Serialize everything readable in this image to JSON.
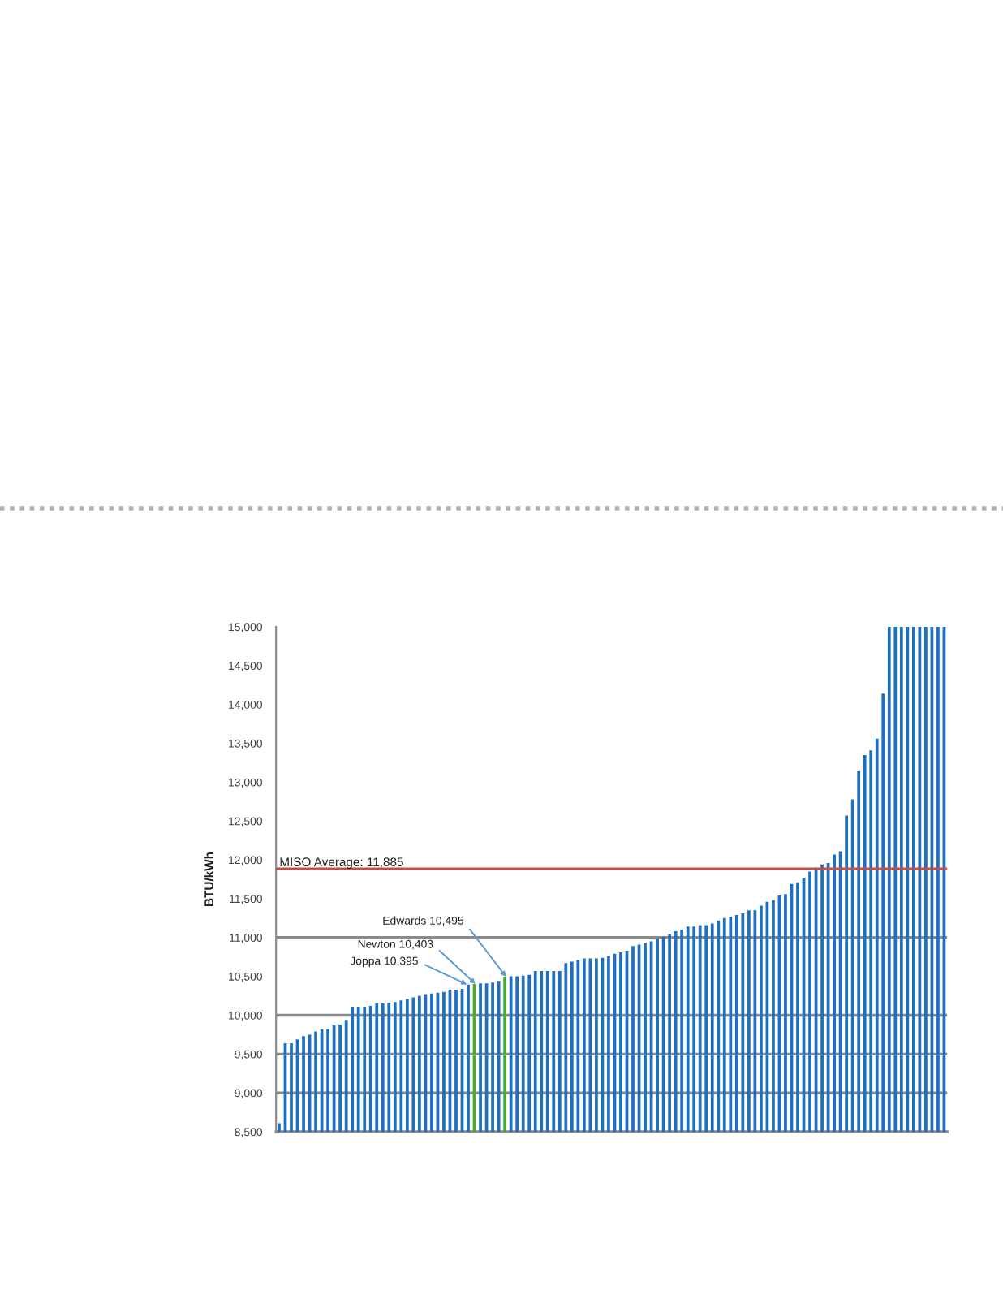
{
  "chart_data": {
    "type": "bar",
    "ylabel": "BTU/kWh",
    "categories": [
      null,
      null,
      null,
      null,
      null,
      null,
      null,
      null,
      null,
      null,
      null,
      null,
      null,
      null,
      null,
      null,
      null,
      null,
      null,
      null,
      null,
      null,
      null,
      null,
      null,
      null,
      null,
      null,
      null,
      null,
      null,
      null,
      null,
      null,
      null,
      null,
      null,
      null,
      null,
      null,
      null,
      null,
      null,
      null,
      null,
      null,
      null,
      null,
      null,
      null,
      null,
      null,
      null,
      null,
      null,
      null,
      null,
      null,
      null,
      null,
      null,
      null,
      null,
      null,
      null,
      null,
      null,
      null,
      null,
      null,
      null,
      null,
      null,
      null,
      null,
      null,
      null,
      null,
      null,
      null,
      null,
      null,
      null,
      null,
      null,
      null,
      null,
      null,
      null,
      null,
      null,
      null,
      null,
      null,
      null,
      null,
      null,
      null,
      null,
      null,
      null,
      null,
      null,
      null,
      null,
      null,
      null,
      null,
      null,
      null
    ],
    "values": [
      8610,
      9640,
      9640,
      9690,
      9730,
      9750,
      9790,
      9820,
      9820,
      9880,
      9880,
      9940,
      10110,
      10110,
      10110,
      10120,
      10150,
      10150,
      10160,
      10170,
      10190,
      10210,
      10230,
      10250,
      10270,
      10280,
      10290,
      10300,
      10330,
      10330,
      10340,
      10395,
      10403,
      10410,
      10410,
      10420,
      10440,
      10495,
      10500,
      10500,
      10510,
      10520,
      10570,
      10570,
      10570,
      10570,
      10570,
      10670,
      10690,
      10710,
      10730,
      10730,
      10730,
      10740,
      10760,
      10790,
      10810,
      10830,
      10890,
      10910,
      10930,
      10950,
      10990,
      11010,
      11040,
      11080,
      11100,
      11140,
      11140,
      11160,
      11160,
      11180,
      11220,
      11250,
      11270,
      11290,
      11310,
      11350,
      11350,
      11410,
      11460,
      11480,
      11540,
      11560,
      11690,
      11710,
      11770,
      11850,
      11900,
      11940,
      11960,
      12070,
      12110,
      12570,
      12780,
      13140,
      13350,
      13410,
      13560,
      14140,
      15000,
      15000,
      15000,
      15000,
      15000,
      15000,
      15000,
      15000,
      15000,
      15000
    ],
    "colors": [
      "#1f6fbf",
      "#1f6fbf",
      "#1f6fbf",
      "#1f6fbf",
      "#1f6fbf",
      "#1f6fbf",
      "#1f6fbf",
      "#1f6fbf",
      "#1f6fbf",
      "#1f6fbf",
      "#1f6fbf",
      "#1f6fbf",
      "#1f6fbf",
      "#1f6fbf",
      "#1f6fbf",
      "#1f6fbf",
      "#1f6fbf",
      "#1f6fbf",
      "#1f6fbf",
      "#1f6fbf",
      "#1f6fbf",
      "#1f6fbf",
      "#1f6fbf",
      "#1f6fbf",
      "#1f6fbf",
      "#1f6fbf",
      "#1f6fbf",
      "#1f6fbf",
      "#1f6fbf",
      "#1f6fbf",
      "#1f6fbf",
      "#1f6fbf",
      "#4ea72e",
      "#1f6fbf",
      "#1f6fbf",
      "#1f6fbf",
      "#1f6fbf",
      "#4ea72e",
      "#1f6fbf",
      "#1f6fbf",
      "#1f6fbf",
      "#1f6fbf",
      "#1f6fbf",
      "#1f6fbf",
      "#1f6fbf",
      "#1f6fbf",
      "#1f6fbf",
      "#1f6fbf",
      "#1f6fbf",
      "#1f6fbf",
      "#1f6fbf",
      "#1f6fbf",
      "#1f6fbf",
      "#1f6fbf",
      "#1f6fbf",
      "#1f6fbf",
      "#1f6fbf",
      "#1f6fbf",
      "#1f6fbf",
      "#1f6fbf",
      "#1f6fbf",
      "#1f6fbf",
      "#1f6fbf",
      "#1f6fbf",
      "#1f6fbf",
      "#1f6fbf",
      "#1f6fbf",
      "#1f6fbf",
      "#1f6fbf",
      "#1f6fbf",
      "#1f6fbf",
      "#1f6fbf",
      "#1f6fbf",
      "#1f6fbf",
      "#1f6fbf",
      "#1f6fbf",
      "#1f6fbf",
      "#1f6fbf",
      "#1f6fbf",
      "#1f6fbf",
      "#1f6fbf",
      "#1f6fbf",
      "#1f6fbf",
      "#1f6fbf",
      "#1f6fbf",
      "#1f6fbf",
      "#1f6fbf",
      "#1f6fbf",
      "#1f6fbf",
      "#1f6fbf",
      "#1f6fbf",
      "#1f6fbf",
      "#1f6fbf",
      "#1f6fbf",
      "#1f6fbf",
      "#1f6fbf",
      "#1f6fbf",
      "#1f6fbf",
      "#1f6fbf",
      "#1f6fbf",
      "#1f6fbf",
      "#1f6fbf",
      "#1f6fbf",
      "#1f6fbf",
      "#1f6fbf",
      "#1f6fbf",
      "#1f6fbf",
      "#1f6fbf",
      "#1f6fbf",
      "#1f6fbf"
    ],
    "value_labels": [
      null,
      null,
      null,
      null,
      null,
      null,
      null,
      null,
      null,
      null,
      null,
      null,
      null,
      null,
      null,
      null,
      null,
      null,
      null,
      null,
      null,
      null,
      null,
      null,
      null,
      null,
      null,
      null,
      null,
      null,
      null,
      "Joppa 10,395",
      "Newton 10,403",
      null,
      null,
      null,
      null,
      "Edwards 10,495",
      null,
      null,
      null,
      null,
      null,
      null,
      null,
      null,
      null,
      null,
      null,
      null,
      null,
      null,
      null,
      null,
      null,
      null,
      null,
      null,
      null,
      null,
      null,
      null,
      null,
      null,
      null,
      null,
      null,
      null,
      null,
      null,
      null,
      null,
      null,
      null,
      null,
      null,
      null,
      null,
      null,
      null,
      null,
      null,
      null,
      null,
      null,
      null,
      null,
      null,
      null,
      null,
      null,
      null,
      null,
      null,
      null,
      null,
      null,
      null,
      null,
      null,
      null,
      null,
      null,
      null,
      null,
      null,
      null,
      null,
      null,
      null
    ],
    "ylim": [
      8500,
      15000
    ],
    "yticks": [
      {
        "value": 8500,
        "label": "8,500"
      },
      {
        "value": 9000,
        "label": "9,000"
      },
      {
        "value": 9500,
        "label": "9,500"
      },
      {
        "value": 10000,
        "label": "10,000"
      },
      {
        "value": 10500,
        "label": "10,500"
      },
      {
        "value": 11000,
        "label": "11,000"
      },
      {
        "value": 11500,
        "label": "11,500"
      },
      {
        "value": 12000,
        "label": "12,000"
      },
      {
        "value": 12500,
        "label": "12,500"
      },
      {
        "value": 13000,
        "label": "13,000"
      },
      {
        "value": 13500,
        "label": "13,500"
      },
      {
        "value": 14000,
        "label": "14,000"
      },
      {
        "value": 14500,
        "label": "14,500"
      },
      {
        "value": 15000,
        "label": "15,000"
      }
    ],
    "ref_lines": [
      {
        "axis": "y",
        "value": 9000,
        "color": "#8a8a8a"
      },
      {
        "axis": "y",
        "value": 9500,
        "color": "#8a8a8a"
      },
      {
        "axis": "y",
        "value": 10000,
        "color": "#8a8a8a"
      },
      {
        "axis": "y",
        "value": 11000,
        "color": "#8a8a8a"
      },
      {
        "axis": "y",
        "value": 11885,
        "label": "MISO Average: 11,885",
        "color": "#c0504d"
      }
    ]
  }
}
